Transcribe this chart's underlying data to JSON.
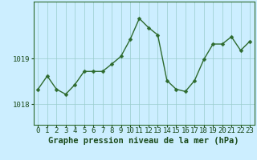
{
  "x": [
    0,
    1,
    2,
    3,
    4,
    5,
    6,
    7,
    8,
    9,
    10,
    11,
    12,
    13,
    14,
    15,
    16,
    17,
    18,
    19,
    20,
    21,
    22,
    23
  ],
  "y": [
    1018.33,
    1018.62,
    1018.33,
    1018.22,
    1018.43,
    1018.72,
    1018.72,
    1018.72,
    1018.88,
    1019.05,
    1019.42,
    1019.88,
    1019.68,
    1019.52,
    1018.52,
    1018.33,
    1018.28,
    1018.52,
    1018.98,
    1019.32,
    1019.32,
    1019.48,
    1019.18,
    1019.38
  ],
  "line_color": "#2d6a2d",
  "marker": "D",
  "marker_size": 2.5,
  "linewidth": 1.0,
  "bg_color": "#cceeff",
  "grid_color": "#99cccc",
  "title": "Graphe pression niveau de la mer (hPa)",
  "title_fontsize": 7.5,
  "title_color": "#1a4a1a",
  "ytick_labels": [
    "1018",
    "1019"
  ],
  "ytick_values": [
    1018.0,
    1019.0
  ],
  "ylim": [
    1017.55,
    1020.25
  ],
  "xlim": [
    -0.5,
    23.5
  ],
  "tick_fontsize": 6.5,
  "tick_color": "#1a4a1a",
  "border_color": "#2d6a2d",
  "xlabel_ticks": [
    0,
    1,
    2,
    3,
    4,
    5,
    6,
    7,
    8,
    9,
    10,
    11,
    12,
    13,
    14,
    15,
    16,
    17,
    18,
    19,
    20,
    21,
    22,
    23
  ]
}
